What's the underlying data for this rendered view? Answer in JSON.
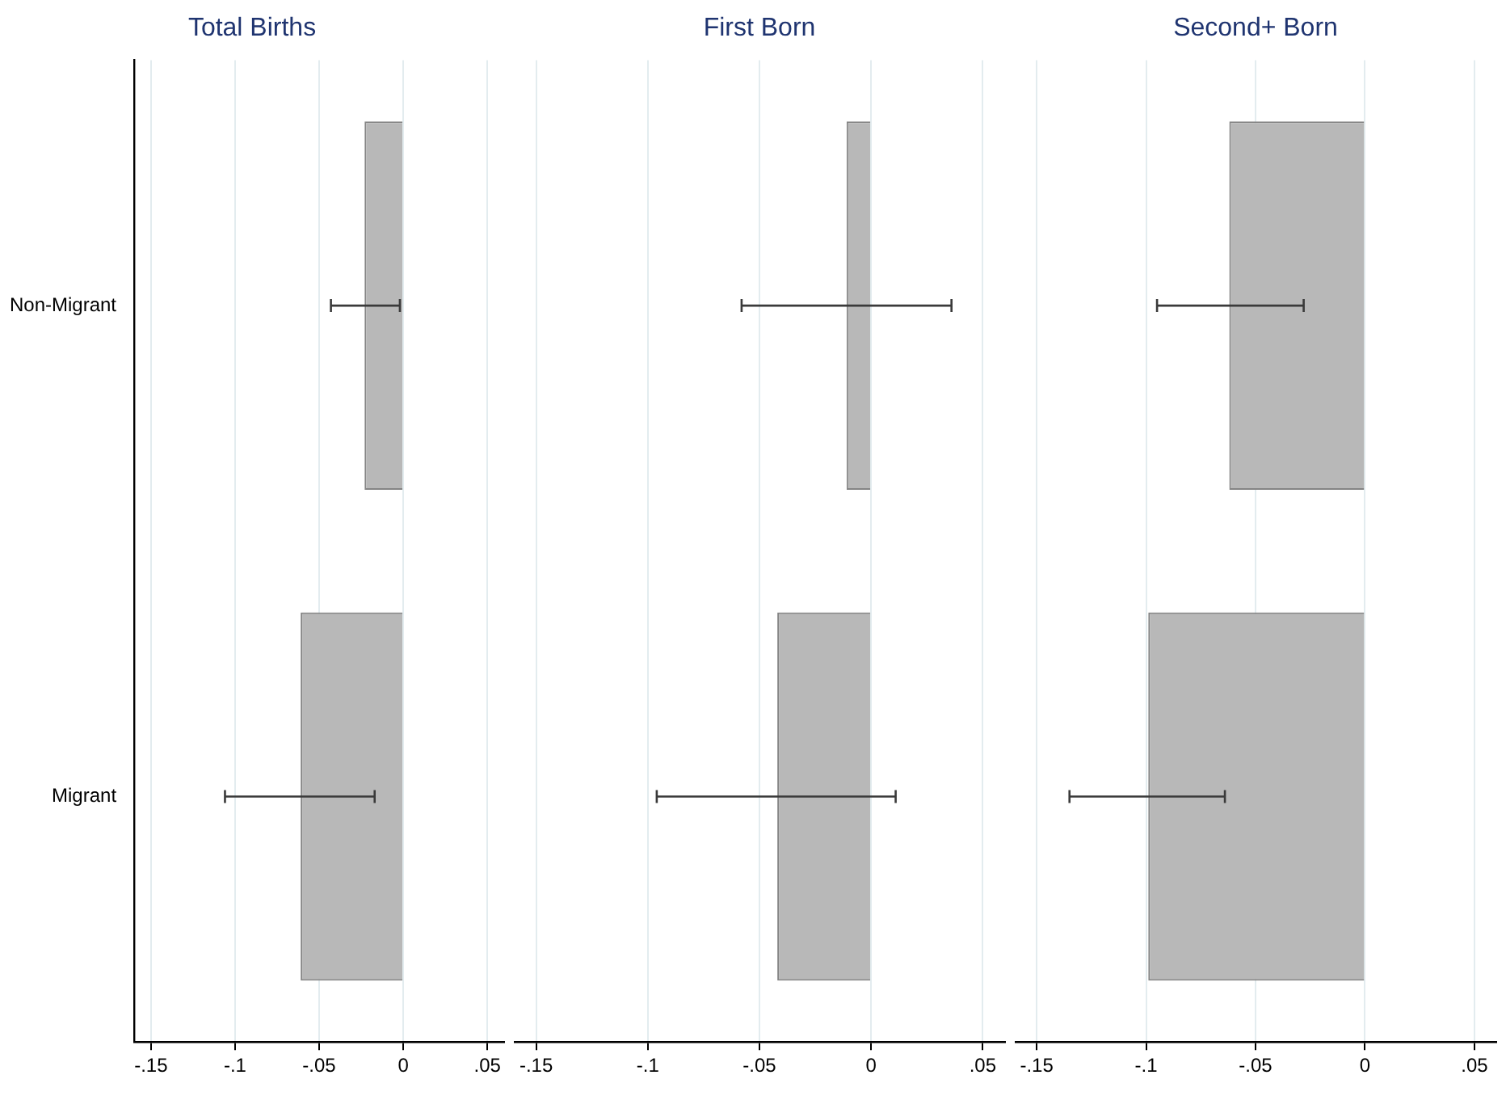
{
  "chart_data": [
    {
      "type": "bar",
      "orientation": "horizontal",
      "title": "Total Births",
      "categories": [
        "Non-Migrant",
        "Migrant"
      ],
      "values": [
        -0.023,
        -0.061
      ],
      "color": "#b8b8b8",
      "errors": [
        [
          -0.043,
          -0.002
        ],
        [
          -0.106,
          -0.017
        ]
      ],
      "xlim": [
        -0.16,
        0.06
      ],
      "xticks": [
        {
          "value": -0.15,
          "label": "-.15"
        },
        {
          "value": -0.1,
          "label": "-.1"
        },
        {
          "value": -0.05,
          "label": "-.05"
        },
        {
          "value": 0,
          "label": "0"
        },
        {
          "value": 0.05,
          "label": ".05"
        }
      ],
      "grid": "x"
    },
    {
      "type": "bar",
      "orientation": "horizontal",
      "title": "First Born",
      "categories": [
        null,
        null
      ],
      "values": [
        -0.011,
        -0.042
      ],
      "color": "#b8b8b8",
      "errors": [
        [
          -0.058,
          0.036
        ],
        [
          -0.096,
          0.011
        ]
      ],
      "xlim": [
        -0.16,
        0.06
      ],
      "xticks": [
        {
          "value": -0.15,
          "label": "-.15"
        },
        {
          "value": -0.1,
          "label": "-.1"
        },
        {
          "value": -0.05,
          "label": "-.05"
        },
        {
          "value": 0,
          "label": "0"
        },
        {
          "value": 0.05,
          "label": ".05"
        }
      ],
      "grid": "x",
      "tick_labels": "x"
    },
    {
      "type": "bar",
      "orientation": "horizontal",
      "title": "Second+ Born",
      "categories": [
        null,
        null
      ],
      "values": [
        -0.062,
        -0.099
      ],
      "color": "#b8b8b8",
      "errors": [
        [
          -0.095,
          -0.028
        ],
        [
          -0.135,
          -0.064
        ]
      ],
      "xlim": [
        -0.16,
        0.06
      ],
      "xticks": [
        {
          "value": -0.15,
          "label": "-.15"
        },
        {
          "value": -0.1,
          "label": "-.1"
        },
        {
          "value": -0.05,
          "label": "-.05"
        },
        {
          "value": 0,
          "label": "0"
        },
        {
          "value": 0.05,
          "label": ".05"
        }
      ],
      "grid": "x",
      "tick_labels": "x"
    }
  ]
}
